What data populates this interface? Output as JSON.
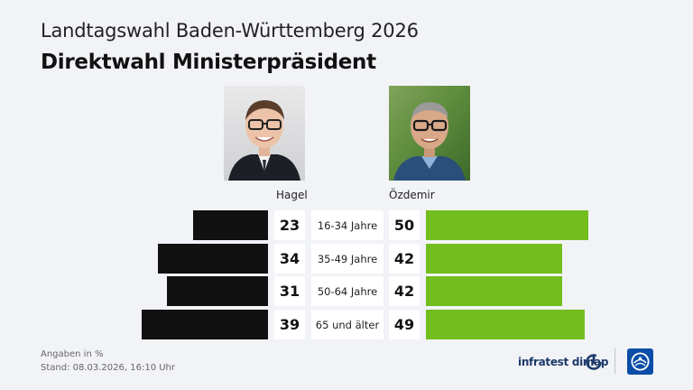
{
  "header": {
    "title": "Landtagswahl Baden-Württemberg 2026",
    "subtitle": "Direktwahl Ministerpräsident"
  },
  "chart_data": {
    "type": "bar",
    "categories": [
      "16-34 Jahre",
      "35-49 Jahre",
      "50-64 Jahre",
      "65 und älter"
    ],
    "series": [
      {
        "name": "Hagel",
        "values": [
          23,
          34,
          31,
          39
        ],
        "color": "#111111"
      },
      {
        "name": "Özdemir",
        "values": [
          50,
          42,
          42,
          49
        ],
        "color": "#72be1e"
      }
    ],
    "title": "Direktwahl Ministerpräsident",
    "xlabel": "",
    "ylabel": "",
    "ylim": [
      0,
      50
    ],
    "grid": false,
    "legend": "top"
  },
  "candidates": {
    "left": {
      "name": "Hagel",
      "photo_icon": "portrait-hagel-photo"
    },
    "right": {
      "name": "Özdemir",
      "photo_icon": "portrait-oezdemir-photo"
    }
  },
  "footer": {
    "unit_note": "Angaben in %",
    "timestamp": "Stand:  08.03.2026, 16:10 Uhr",
    "brand": "infratest dimap",
    "brand_icon": "infratest-dimap-logo-icon",
    "broadcaster_icon": "tagesschau-logo-icon",
    "brand_color": "#1d3a6b",
    "logo_color": "#0a4da8"
  }
}
